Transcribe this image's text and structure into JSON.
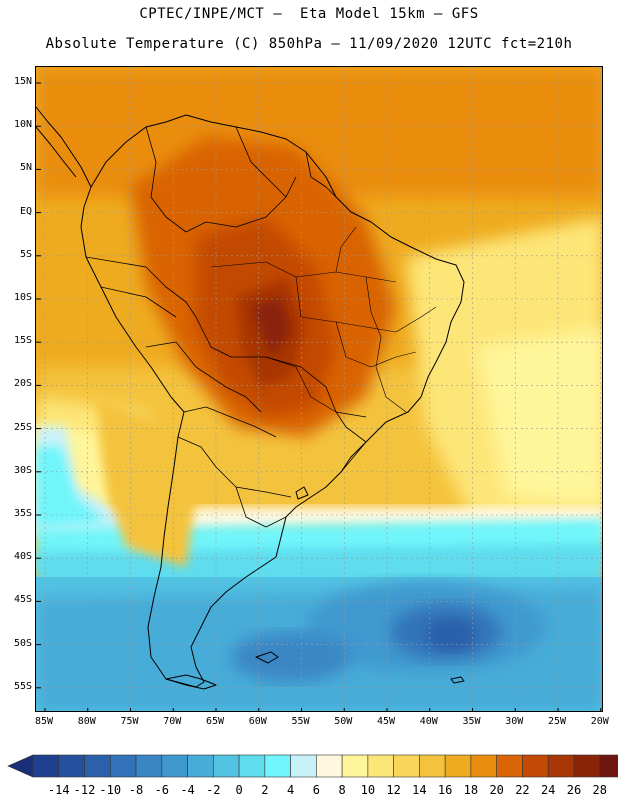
{
  "header": {
    "line1": "CPTEC/INPE/MCT –  Eta Model 15km – GFS",
    "line2": "Absolute Temperature (C) 850hPa – 11/09/2020 12UTC fct=210h"
  },
  "map": {
    "region": "South America",
    "variable": "temperature-850hPa",
    "lat_labels": [
      "15N",
      "10N",
      "5N",
      "EQ",
      "5S",
      "10S",
      "15S",
      "20S",
      "25S",
      "30S",
      "35S",
      "40S",
      "45S",
      "50S",
      "55S"
    ],
    "lon_labels": [
      "85W",
      "80W",
      "75W",
      "70W",
      "65W",
      "60W",
      "55W",
      "50W",
      "45W",
      "40W",
      "35W",
      "30W",
      "25W",
      "20W"
    ]
  },
  "colorbar": {
    "labels": [
      "-14",
      "-12",
      "-10",
      "-8",
      "-6",
      "-4",
      "-2",
      "0",
      "2",
      "4",
      "6",
      "8",
      "10",
      "12",
      "14",
      "16",
      "18",
      "20",
      "22",
      "24",
      "26",
      "28"
    ],
    "colors": [
      "#1f3f8f",
      "#25509d",
      "#2b61ab",
      "#3272b8",
      "#3a86c5",
      "#3f99cf",
      "#47acd8",
      "#52c3e3",
      "#5fdcee",
      "#6ff5fb",
      "#c8f2fa",
      "#fff8e0",
      "#fff59a",
      "#fde678",
      "#f9d65a",
      "#f4c33e",
      "#efab1f",
      "#ea8d0e",
      "#d96406",
      "#c24a05",
      "#a83506",
      "#8a2408",
      "#6f1510"
    ],
    "under_color": "#1a2f7a",
    "over_color": "#600e14"
  }
}
